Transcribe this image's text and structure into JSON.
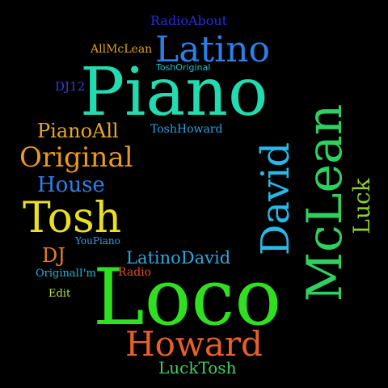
{
  "words": [
    {
      "text": "RadioAbout",
      "color": "#2a2ad8"
    },
    {
      "text": "Latino",
      "color": "#2d7fe8"
    },
    {
      "text": "AllMcLean",
      "color": "#e0a020"
    },
    {
      "text": "ToshOriginal",
      "color": "#20c0c8"
    },
    {
      "text": "DJ12",
      "color": "#3a3ad0"
    },
    {
      "text": "Piano",
      "color": "#22dcb0"
    },
    {
      "text": "PianoAll",
      "color": "#e8a828"
    },
    {
      "text": "ToshHoward",
      "color": "#2aa0e0"
    },
    {
      "text": "Original",
      "color": "#e89a20"
    },
    {
      "text": "House",
      "color": "#2e7fe8"
    },
    {
      "text": "Tosh",
      "color": "#e8e020"
    },
    {
      "text": "David",
      "color": "#28b8e8"
    },
    {
      "text": "McLean",
      "color": "#30d060"
    },
    {
      "text": "Luck",
      "color": "#8ed030"
    },
    {
      "text": "YouPiano",
      "color": "#3a9ae8"
    },
    {
      "text": "DJ",
      "color": "#e8801c"
    },
    {
      "text": "LatinoDavid",
      "color": "#2aa8e0"
    },
    {
      "text": "OriginalI'm",
      "color": "#2ab0d8"
    },
    {
      "text": "Radio",
      "color": "#e84830"
    },
    {
      "text": "Loco",
      "color": "#30e020"
    },
    {
      "text": "Edit",
      "color": "#b8e040"
    },
    {
      "text": "Howard",
      "color": "#e86028"
    },
    {
      "text": "LuckTosh",
      "color": "#40d068"
    }
  ]
}
